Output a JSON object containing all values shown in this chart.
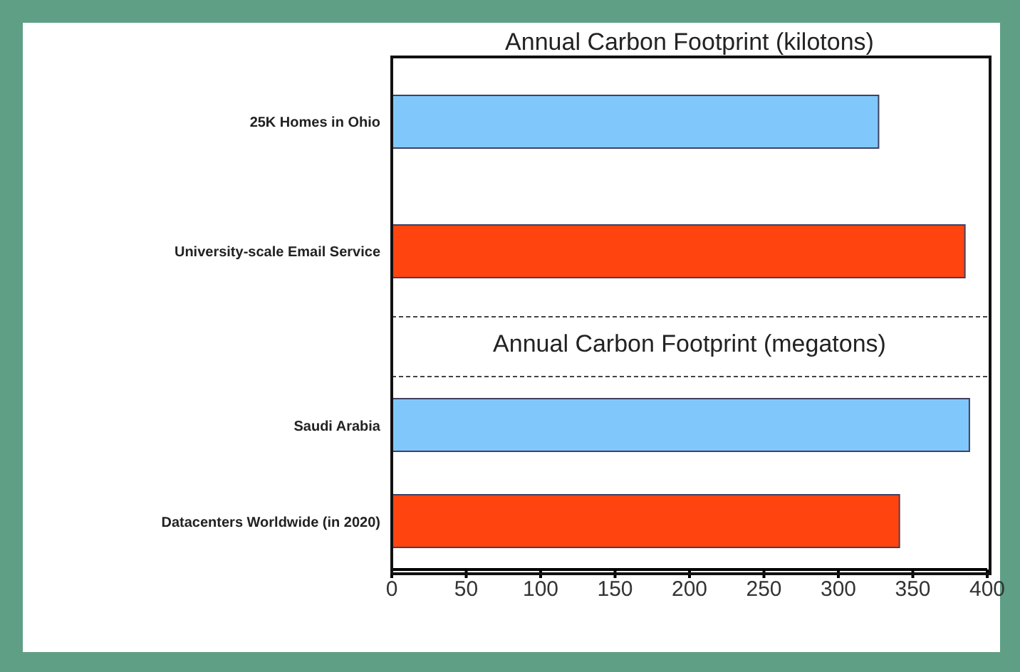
{
  "chart_data": [
    {
      "type": "bar",
      "orientation": "horizontal",
      "title": "Annual Carbon Footprint (kilotons)",
      "categories": [
        "25K Homes in Ohio",
        "University-scale Email Service"
      ],
      "values": [
        327,
        385
      ],
      "colors": [
        "#80c8fc",
        "#ff4410"
      ],
      "xlim": [
        0,
        400
      ],
      "xticks": [
        0,
        50,
        100,
        150,
        200,
        250,
        300,
        350,
        400
      ],
      "tick_labels": "y"
    },
    {
      "type": "bar",
      "orientation": "horizontal",
      "title": "Annual Carbon Footprint (megatons)",
      "categories": [
        "Saudi Arabia",
        "Datacenters Worldwide (in 2020)"
      ],
      "values": [
        388,
        341
      ],
      "colors": [
        "#80c8fc",
        "#ff4410"
      ],
      "xlim": [
        0,
        400
      ],
      "xticks": [
        0,
        50,
        100,
        150,
        200,
        250,
        300,
        350,
        400
      ]
    }
  ]
}
